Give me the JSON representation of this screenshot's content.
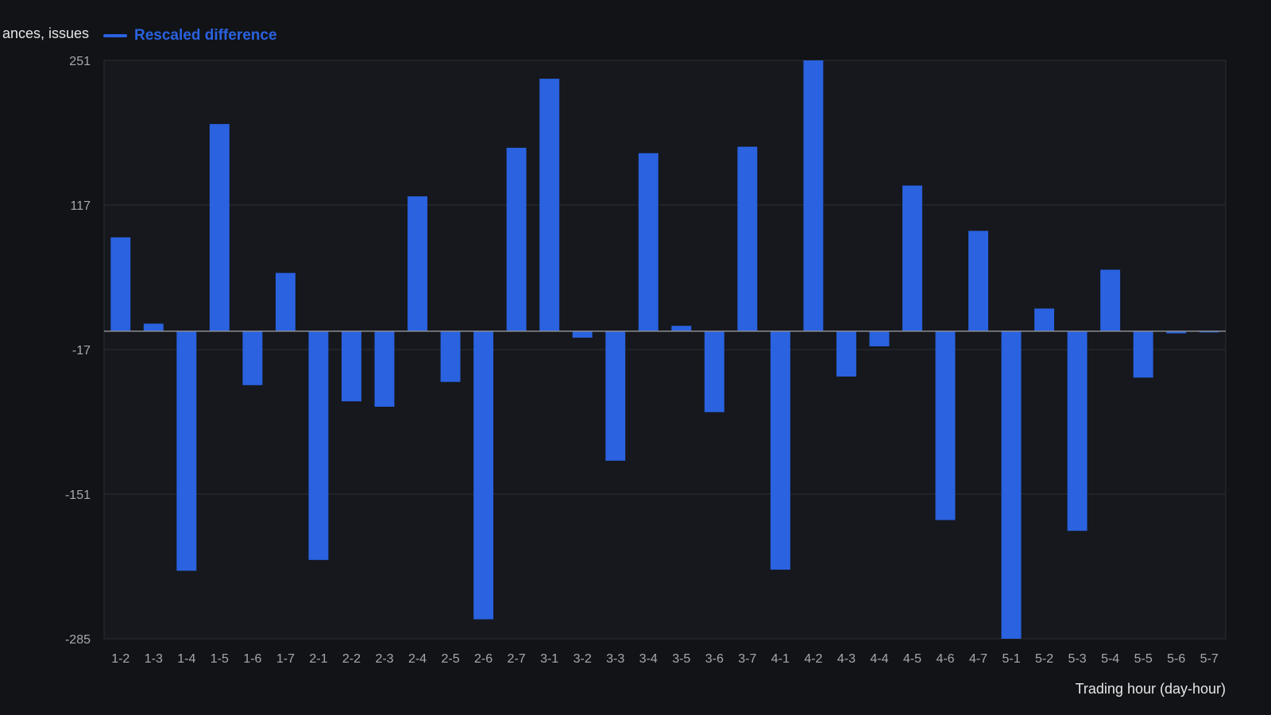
{
  "chart_data": {
    "type": "bar",
    "ylabel": "ances, issues",
    "xlabel": "Trading hour (day-hour)",
    "legend": {
      "position": "top-left",
      "entries": [
        "Rescaled difference"
      ]
    },
    "ylim": [
      -285,
      251
    ],
    "yticks": [
      251,
      117,
      -17,
      -151,
      -285
    ],
    "grid": true,
    "categories": [
      "1-2",
      "1-3",
      "1-4",
      "1-5",
      "1-6",
      "1-7",
      "2-1",
      "2-2",
      "2-3",
      "2-4",
      "2-5",
      "2-6",
      "2-7",
      "3-1",
      "3-2",
      "3-3",
      "3-4",
      "3-5",
      "3-6",
      "3-7",
      "4-1",
      "4-2",
      "4-3",
      "4-4",
      "4-5",
      "4-6",
      "4-7",
      "5-1",
      "5-2",
      "5-3",
      "5-4",
      "5-5",
      "5-6",
      "5-7"
    ],
    "series": [
      {
        "name": "Rescaled difference",
        "color": "#2a62e0",
        "values": [
          87,
          7,
          -222,
          192,
          -50,
          54,
          -212,
          -65,
          -70,
          125,
          -47,
          -267,
          170,
          234,
          -6,
          -120,
          165,
          5,
          -75,
          171,
          -221,
          251,
          -42,
          -14,
          135,
          -175,
          93,
          -285,
          21,
          -185,
          57,
          -43,
          -2,
          0
        ]
      }
    ]
  },
  "colors": {
    "background": "#111317",
    "plot_background": "#16181d",
    "grid": "#2b2e34",
    "zero_line": "#8a8d93",
    "text": "#e6e6e6",
    "tick_text": "#a7a9ad"
  }
}
